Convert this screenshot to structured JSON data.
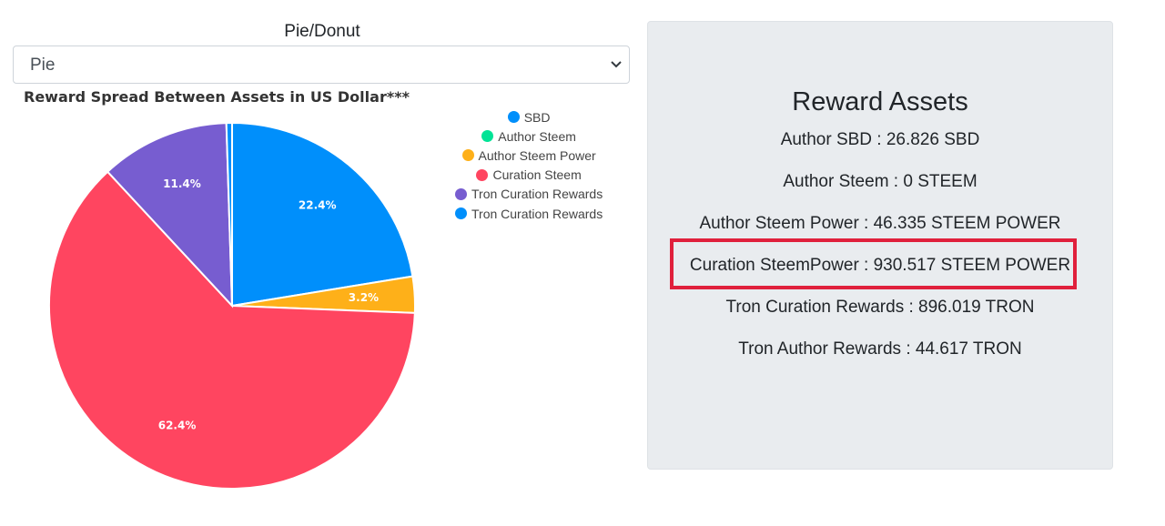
{
  "selector": {
    "label": "Pie/Donut",
    "value": "Pie"
  },
  "chart_data": {
    "type": "pie",
    "title": "Reward Spread Between Assets in US Dollar***",
    "legend_placement": "top-right",
    "slices": [
      {
        "name": "SBD",
        "value": 22.4,
        "label": "22.4%",
        "color": "#008ffb"
      },
      {
        "name": "Author Steem",
        "value": 0,
        "label": "",
        "color": "#00e396"
      },
      {
        "name": "Author Steem Power",
        "value": 3.2,
        "label": "3.2%",
        "color": "#feb019"
      },
      {
        "name": "Curation Steem",
        "value": 62.4,
        "label": "62.4%",
        "color": "#ff4560"
      },
      {
        "name": "Tron Curation Rewards",
        "value": 11.4,
        "label": "11.4%",
        "color": "#775dd0"
      },
      {
        "name": "Tron Curation Rewards",
        "value": 0.5,
        "label": "",
        "color": "#008ffb"
      }
    ]
  },
  "panel": {
    "title": "Reward Assets",
    "rows": [
      "Author SBD : 26.826 SBD",
      "Author Steem : 0 STEEM",
      "Author Steem Power : 46.335 STEEM POWER",
      "Curation SteemPower : 930.517 STEEM POWER",
      "Tron Curation Rewards : 896.019 TRON",
      "Tron Author Rewards : 44.617 TRON"
    ],
    "highlight_color": "#e0203c"
  }
}
